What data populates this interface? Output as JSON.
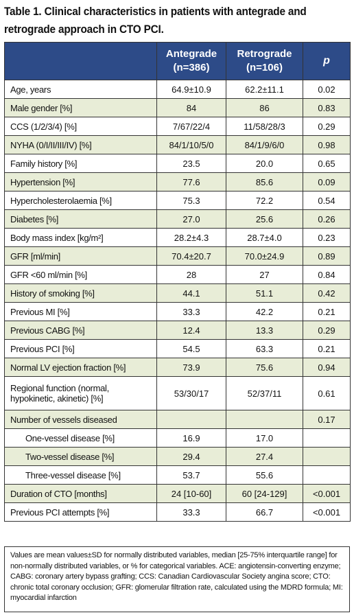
{
  "title": "Table 1. Clinical characteristics in patients with antegrade and retrograde approach in CTO PCI.",
  "header": {
    "col1": "",
    "col2_line1": "Antegrade",
    "col2_line2": "(n=386)",
    "col3_line1": "Retrograde",
    "col3_line2": "(n=106)",
    "col4": "p"
  },
  "rows": [
    {
      "label": "Age, years",
      "ante": "64.9±10.9",
      "retro": "62.2±11.1",
      "p": "0.02"
    },
    {
      "label": "Male gender [%]",
      "ante": "84",
      "retro": "86",
      "p": "0.83"
    },
    {
      "label": "CCS (1/2/3/4) [%]",
      "ante": "7/67/22/4",
      "retro": "11/58/28/3",
      "p": "0.29"
    },
    {
      "label": "NYHA (0/I/II/III/IV) [%]",
      "ante": "84/1/10/5/0",
      "retro": "84/1/9/6/0",
      "p": "0.98"
    },
    {
      "label": "Family history [%]",
      "ante": "23.5",
      "retro": "20.0",
      "p": "0.65"
    },
    {
      "label": "Hypertension [%]",
      "ante": "77.6",
      "retro": "85.6",
      "p": "0.09"
    },
    {
      "label": "Hypercholesterolaemia [%]",
      "ante": "75.3",
      "retro": "72.2",
      "p": "0.54"
    },
    {
      "label": "Diabetes [%]",
      "ante": "27.0",
      "retro": "25.6",
      "p": "0.26"
    },
    {
      "label": "Body mass index [kg/m²]",
      "ante": "28.2±4.3",
      "retro": "28.7±4.0",
      "p": "0.23"
    },
    {
      "label": "GFR [ml/min]",
      "ante": "70.4±20.7",
      "retro": "70.0±24.9",
      "p": "0.89"
    },
    {
      "label": "GFR <60 ml/min [%]",
      "ante": "28",
      "retro": "27",
      "p": "0.84"
    },
    {
      "label": "History of smoking [%]",
      "ante": "44.1",
      "retro": "51.1",
      "p": "0.42"
    },
    {
      "label": "Previous MI [%]",
      "ante": "33.3",
      "retro": "42.2",
      "p": "0.21"
    },
    {
      "label": "Previous CABG [%]",
      "ante": "12.4",
      "retro": "13.3",
      "p": "0.29"
    },
    {
      "label": "Previous PCI [%]",
      "ante": "54.5",
      "retro": "63.3",
      "p": "0.21"
    },
    {
      "label": "Normal LV ejection fraction [%]",
      "ante": "73.9",
      "retro": "75.6",
      "p": "0.94"
    },
    {
      "label": "Regional function (normal, hypokinetic, akinetic) [%]",
      "ante": "53/30/17",
      "retro": "52/37/11",
      "p": "0.61"
    },
    {
      "label": "Number of vessels diseased",
      "ante": "",
      "retro": "",
      "p": "0.17"
    },
    {
      "label": "One-vessel disease [%]",
      "ante": "16.9",
      "retro": "17.0",
      "p": ""
    },
    {
      "label": "Two-vessel disease [%]",
      "ante": "29.4",
      "retro": "27.4",
      "p": ""
    },
    {
      "label": "Three-vessel disease [%]",
      "ante": "53.7",
      "retro": "55.6",
      "p": ""
    },
    {
      "label": "Duration of CTO [months]",
      "ante": "24 [10-60]",
      "retro": "60 [24-129]",
      "p": "<0.001"
    },
    {
      "label": "Previous PCI attempts [%]",
      "ante": "33.3",
      "retro": "66.7",
      "p": "<0.001"
    }
  ],
  "footnote": "Values are mean values±SD for normally distributed variables, median [25-75% interquartile range] for non-normally distributed variables, or % for categorical variables. ACE: angiotensin-converting enzyme; CABG: coronary artery bypass grafting; CCS: Canadian Cardiovascular Society angina score; CTO: chronic total coronary occlusion; GFR: glomerular filtration rate, calculated using the MDRD formula; MI: myocardial infarction",
  "colors": {
    "header_bg": "#2d4b88",
    "stripe": "#e8edd7"
  }
}
